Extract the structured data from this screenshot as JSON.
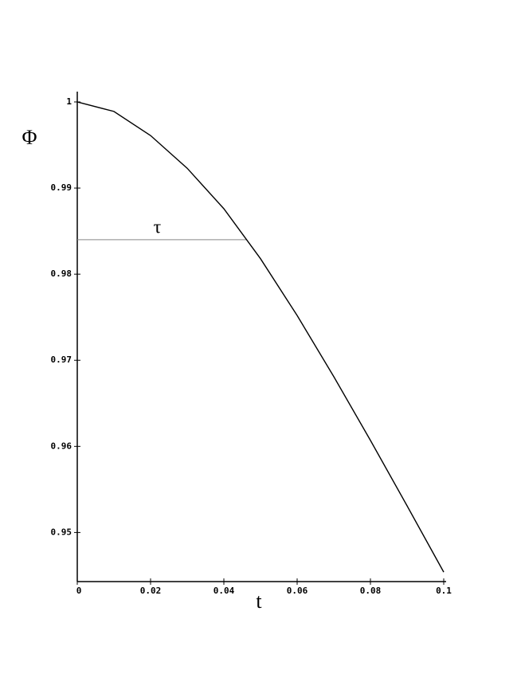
{
  "chart_data": {
    "type": "line",
    "x_label": "t",
    "y_label": "Φ",
    "x": [
      0,
      0.01,
      0.02,
      0.03,
      0.04,
      0.05,
      0.06,
      0.07,
      0.08,
      0.09,
      0.1
    ],
    "series": [
      {
        "color": "#000000",
        "values": [
          1,
          0.9989,
          0.9961,
          0.9923,
          0.9876,
          0.9818,
          0.9752,
          0.9681,
          0.9607,
          0.9531,
          0.9454
        ]
      }
    ],
    "xlim": [
      0,
      0.1
    ],
    "ylim": [
      0.9443,
      1.0012
    ],
    "xticks": [
      0,
      0.02,
      0.04,
      0.06,
      0.08,
      0.1
    ],
    "yticks": [
      0.95,
      0.96,
      0.97,
      0.98,
      0.99,
      1
    ],
    "reference_line": {
      "label": "τ",
      "y": 0.984,
      "x_end": 0.0463,
      "color": "#888888"
    }
  }
}
